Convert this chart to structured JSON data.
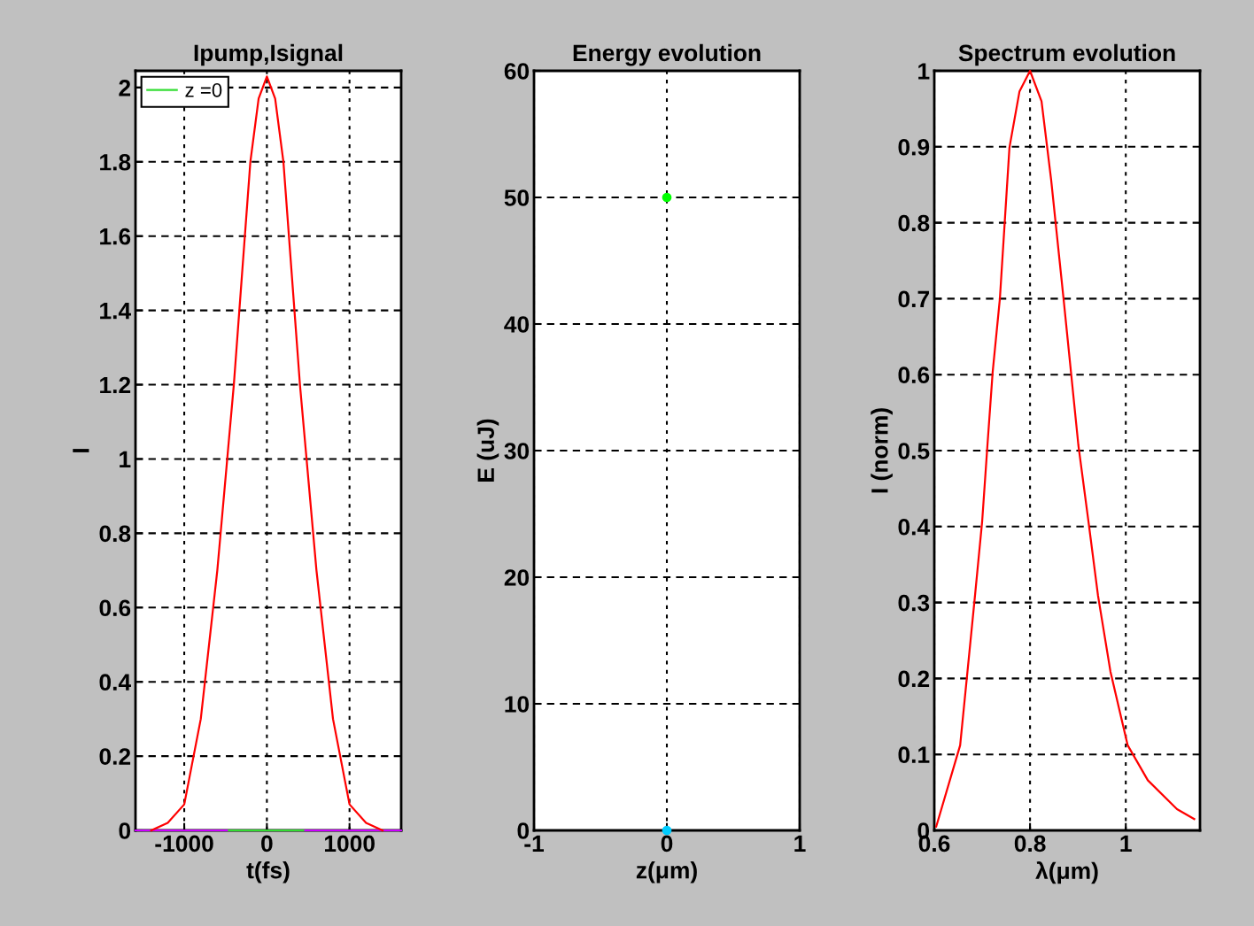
{
  "chart_data": [
    {
      "type": "line",
      "title": "Ipump,Isignal",
      "xlabel": "t(fs)",
      "ylabel": "I",
      "xlim": [
        -1590,
        1625
      ],
      "ylim": [
        0,
        2.045
      ],
      "xticks": [
        -1000,
        0,
        1000
      ],
      "yticks": [
        0,
        0.2,
        0.4,
        0.6,
        0.8,
        1,
        1.2,
        1.4,
        1.6,
        1.8,
        2
      ],
      "grid": true,
      "legend": "top left",
      "line_style": "solid",
      "series": [
        {
          "color": "#cc00ff",
          "x": [
            -1590,
            1625
          ],
          "values": [
            0,
            0
          ]
        },
        {
          "name": "z =0",
          "color": "#33dd33",
          "x": [
            -460,
            440
          ],
          "values": [
            0,
            0
          ]
        },
        {
          "color": "#ff0000",
          "x": [
            -1400,
            -1200,
            -1000,
            -800,
            -600,
            -400,
            -300,
            -200,
            -100,
            0,
            100,
            200,
            300,
            400,
            600,
            800,
            1000,
            1200,
            1400
          ],
          "values": [
            0,
            0.02,
            0.07,
            0.3,
            0.7,
            1.2,
            1.5,
            1.8,
            1.97,
            2.03,
            1.97,
            1.8,
            1.5,
            1.2,
            0.7,
            0.3,
            0.07,
            0.02,
            0
          ]
        }
      ]
    },
    {
      "type": "scatter",
      "title": "Energy evolution",
      "xlabel": "z(μm)",
      "ylabel": "E (uJ)",
      "xlim": [
        -1,
        1
      ],
      "ylim": [
        0,
        60
      ],
      "xticks": [
        -1,
        0,
        1
      ],
      "yticks": [
        0,
        10,
        20,
        30,
        40,
        50,
        60
      ],
      "grid": true,
      "marker": "circle",
      "series": [
        {
          "color": "#00ff00",
          "x": [
            0
          ],
          "values": [
            50
          ]
        },
        {
          "color": "#00ccff",
          "x": [
            0
          ],
          "values": [
            0
          ]
        }
      ]
    },
    {
      "type": "line",
      "title": "Spectrum evolution",
      "xlabel": "λ(μm)",
      "ylabel": "I (norm)",
      "xlim": [
        0.6,
        1.155
      ],
      "ylim": [
        0,
        1
      ],
      "xticks": [
        0.6,
        0.8,
        1
      ],
      "yticks": [
        0,
        0.1,
        0.2,
        0.3,
        0.4,
        0.5,
        0.6,
        0.7,
        0.8,
        0.9,
        1
      ],
      "grid": true,
      "line_style": "solid",
      "series": [
        {
          "color": "#ff0000",
          "x": [
            0.604,
            0.654,
            0.685,
            0.7,
            0.711,
            0.722,
            0.737,
            0.757,
            0.778,
            0.8,
            0.824,
            0.844,
            0.87,
            0.901,
            0.922,
            0.942,
            0.968,
            1.004,
            1.046,
            1.107,
            1.143
          ],
          "values": [
            0.005,
            0.112,
            0.309,
            0.407,
            0.507,
            0.604,
            0.7,
            0.899,
            0.973,
            1.0,
            0.96,
            0.857,
            0.7,
            0.507,
            0.407,
            0.309,
            0.209,
            0.112,
            0.066,
            0.028,
            0.015
          ]
        }
      ]
    }
  ]
}
